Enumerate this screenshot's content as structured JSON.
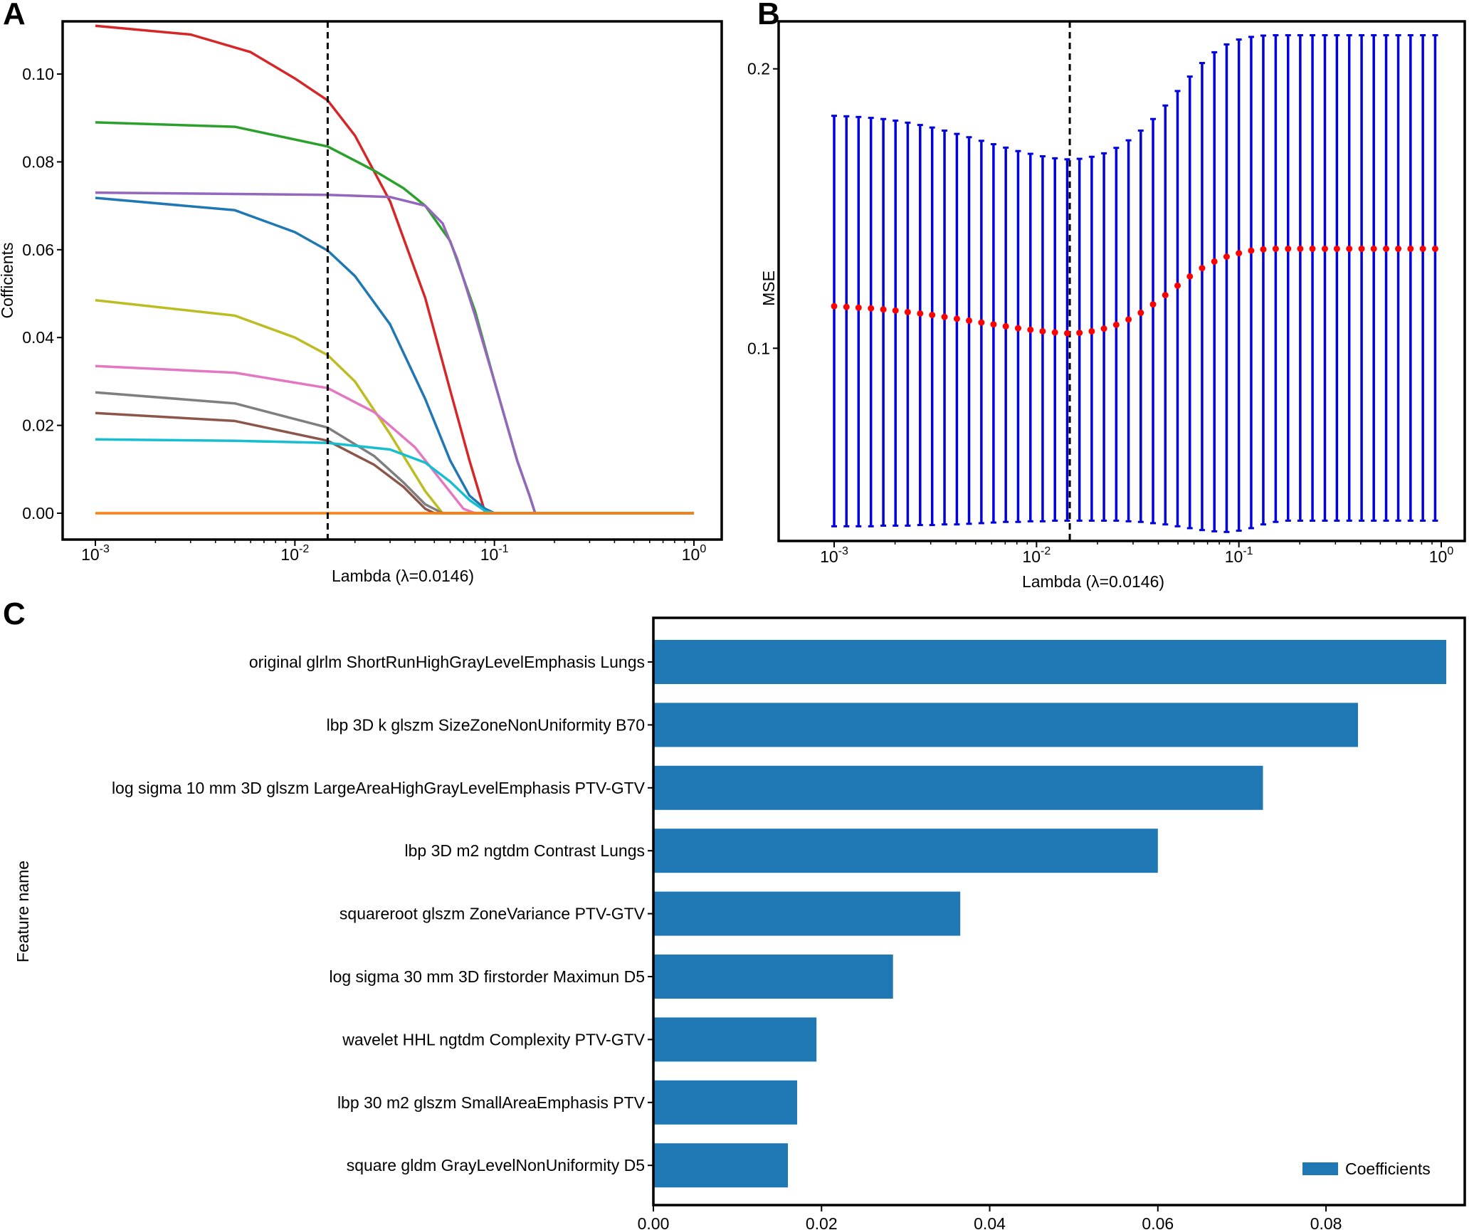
{
  "chart_data": [
    {
      "panel": "A",
      "type": "line",
      "xscale": "log",
      "xlabel": "Lambda (λ=0.0146)",
      "ylabel": "Cofficients",
      "xlim": [
        0.001,
        1
      ],
      "ylim": [
        -0.006,
        0.112
      ],
      "xticks": [
        {
          "exp": "-3"
        },
        {
          "exp": "-2"
        },
        {
          "exp": "-1"
        },
        {
          "exp": "0"
        }
      ],
      "yticks": [
        "0.00",
        "0.02",
        "0.04",
        "0.06",
        "0.08",
        "0.10"
      ],
      "cutoff_lambda": 0.0146,
      "series": [
        {
          "color": "#d62728",
          "x": [
            0.001,
            0.003,
            0.006,
            0.01,
            0.0146,
            0.02,
            0.03,
            0.045,
            0.06,
            0.075,
            0.09,
            1
          ],
          "y": [
            0.111,
            0.109,
            0.105,
            0.099,
            0.094,
            0.086,
            0.071,
            0.049,
            0.028,
            0.012,
            0.0,
            0.0
          ]
        },
        {
          "color": "#2ca02c",
          "x": [
            0.001,
            0.005,
            0.0146,
            0.025,
            0.035,
            0.045,
            0.06,
            0.08,
            0.1,
            0.13,
            0.15,
            0.16,
            1
          ],
          "y": [
            0.089,
            0.088,
            0.0835,
            0.078,
            0.074,
            0.07,
            0.062,
            0.046,
            0.03,
            0.012,
            0.004,
            0.0,
            0.0
          ]
        },
        {
          "color": "#9467bd",
          "x": [
            0.001,
            0.0146,
            0.03,
            0.045,
            0.055,
            0.065,
            0.08,
            0.1,
            0.13,
            0.15,
            0.16,
            1
          ],
          "y": [
            0.073,
            0.0725,
            0.072,
            0.07,
            0.066,
            0.058,
            0.045,
            0.03,
            0.012,
            0.004,
            0.0,
            0.0
          ]
        },
        {
          "color": "#1f77b4",
          "x": [
            0.001,
            0.005,
            0.01,
            0.0146,
            0.02,
            0.03,
            0.045,
            0.06,
            0.075,
            0.09,
            0.1,
            1
          ],
          "y": [
            0.0718,
            0.069,
            0.064,
            0.0598,
            0.054,
            0.043,
            0.026,
            0.012,
            0.004,
            0.001,
            0.0,
            0.0
          ]
        },
        {
          "color": "#bcbd22",
          "x": [
            0.001,
            0.005,
            0.01,
            0.0146,
            0.02,
            0.03,
            0.045,
            0.055,
            1
          ],
          "y": [
            0.0485,
            0.045,
            0.04,
            0.036,
            0.03,
            0.018,
            0.005,
            0.0,
            0.0
          ]
        },
        {
          "color": "#e377c2",
          "x": [
            0.001,
            0.005,
            0.0146,
            0.025,
            0.04,
            0.055,
            0.07,
            0.08,
            1
          ],
          "y": [
            0.0335,
            0.032,
            0.0285,
            0.023,
            0.015,
            0.007,
            0.001,
            0.0,
            0.0
          ]
        },
        {
          "color": "#7f7f7f",
          "x": [
            0.001,
            0.005,
            0.0146,
            0.025,
            0.035,
            0.045,
            0.055,
            0.06,
            1
          ],
          "y": [
            0.0275,
            0.025,
            0.0195,
            0.013,
            0.007,
            0.002,
            0.0,
            0.0,
            0.0
          ]
        },
        {
          "color": "#8c564b",
          "x": [
            0.001,
            0.005,
            0.0146,
            0.025,
            0.035,
            0.045,
            0.05,
            1
          ],
          "y": [
            0.0228,
            0.021,
            0.0165,
            0.011,
            0.006,
            0.001,
            0.0,
            0.0
          ]
        },
        {
          "color": "#17becf",
          "x": [
            0.001,
            0.005,
            0.0146,
            0.03,
            0.045,
            0.06,
            0.075,
            0.09,
            0.1,
            1
          ],
          "y": [
            0.0168,
            0.0165,
            0.016,
            0.0145,
            0.0115,
            0.0072,
            0.003,
            0.0005,
            0.0,
            0.0
          ]
        },
        {
          "color": "#ff7f0e",
          "x": [
            0.001,
            1
          ],
          "y": [
            0.0,
            0.0
          ]
        }
      ]
    },
    {
      "panel": "B",
      "type": "scatter",
      "xscale": "log",
      "yscale": "log",
      "xlabel": "Lambda (λ=0.0146)",
      "ylabel": "MSE",
      "xlim": [
        0.001,
        1
      ],
      "ylim": [
        0.062,
        0.225
      ],
      "xticks": [
        {
          "exp": "-3"
        },
        {
          "exp": "-2"
        },
        {
          "exp": "-1"
        },
        {
          "exp": "0"
        }
      ],
      "yticks": [
        "0.1",
        "0.2"
      ],
      "cutoff_lambda": 0.0146,
      "error_bar_color": "#0000dd",
      "point_color": "#ff0000",
      "lambdas": [
        0.001,
        0.00115,
        0.00132,
        0.00152,
        0.00175,
        0.00201,
        0.00231,
        0.00266,
        0.00305,
        0.00351,
        0.00404,
        0.00464,
        0.00534,
        0.00613,
        0.00705,
        0.00811,
        0.00933,
        0.01072,
        0.01233,
        0.01418,
        0.0163,
        0.01874,
        0.02154,
        0.02477,
        0.02848,
        0.03275,
        0.03765,
        0.04329,
        0.04977,
        0.05722,
        0.06579,
        0.07565,
        0.08697,
        0.1,
        0.115,
        0.132,
        0.152,
        0.175,
        0.201,
        0.231,
        0.266,
        0.305,
        0.351,
        0.404,
        0.464,
        0.534,
        0.613,
        0.705,
        0.811,
        0.933
      ],
      "mse": [
        0.111,
        0.1108,
        0.1106,
        0.1104,
        0.1101,
        0.1098,
        0.1094,
        0.109,
        0.1086,
        0.1081,
        0.1076,
        0.1071,
        0.1066,
        0.1061,
        0.1056,
        0.1051,
        0.1047,
        0.1043,
        0.104,
        0.1038,
        0.1039,
        0.1043,
        0.105,
        0.106,
        0.1074,
        0.1092,
        0.1115,
        0.1141,
        0.1168,
        0.1195,
        0.122,
        0.124,
        0.1255,
        0.1266,
        0.1274,
        0.1278,
        0.128,
        0.128,
        0.128,
        0.128,
        0.128,
        0.128,
        0.128,
        0.128,
        0.128,
        0.128,
        0.128,
        0.128,
        0.128,
        0.128
      ],
      "upper": [
        0.178,
        0.1778,
        0.1775,
        0.1771,
        0.1766,
        0.1759,
        0.175,
        0.174,
        0.1729,
        0.1716,
        0.1702,
        0.1688,
        0.1673,
        0.1659,
        0.1645,
        0.1631,
        0.162,
        0.161,
        0.1602,
        0.1598,
        0.16,
        0.1608,
        0.1622,
        0.1644,
        0.1675,
        0.1716,
        0.1766,
        0.1826,
        0.1893,
        0.1962,
        0.2029,
        0.2084,
        0.2125,
        0.2151,
        0.2165,
        0.2172,
        0.2174,
        0.2174,
        0.2174,
        0.2174,
        0.2174,
        0.2174,
        0.2174,
        0.2174,
        0.2174,
        0.2174,
        0.2174,
        0.2174,
        0.2174,
        0.2174
      ],
      "lower": [
        0.0643,
        0.0643,
        0.0643,
        0.0643,
        0.0644,
        0.0644,
        0.0644,
        0.0645,
        0.0645,
        0.0646,
        0.0646,
        0.0647,
        0.0648,
        0.0649,
        0.065,
        0.065,
        0.0651,
        0.0651,
        0.0652,
        0.0652,
        0.0652,
        0.0652,
        0.0652,
        0.0652,
        0.0651,
        0.065,
        0.0648,
        0.0646,
        0.0643,
        0.064,
        0.0637,
        0.0635,
        0.0634,
        0.0636,
        0.064,
        0.0646,
        0.065,
        0.0652,
        0.0652,
        0.0652,
        0.0652,
        0.0652,
        0.0652,
        0.0652,
        0.0652,
        0.0652,
        0.0652,
        0.0652,
        0.0652,
        0.0652
      ]
    },
    {
      "panel": "C",
      "type": "bar",
      "orientation": "horizontal",
      "ylabel": "Feature name",
      "xlim": [
        0,
        0.0965
      ],
      "xticks": [
        "0.00",
        "0.02",
        "0.04",
        "0.06",
        "0.08"
      ],
      "legend": "Coefficients",
      "legend_position": "bottom-right",
      "bar_color": "#1f77b4",
      "categories": [
        "original glrlm ShortRunHighGrayLevelEmphasis Lungs",
        "lbp 3D k glszm SizeZoneNonUniformity B70",
        "log sigma 10 mm 3D glszm LargeAreaHighGrayLevelEmphasis PTV-GTV",
        "lbp 3D m2 ngtdm Contrast Lungs",
        "squareroot glszm ZoneVariance PTV-GTV",
        "log sigma 30 mm 3D firstorder Maximun D5",
        "wavelet HHL ngtdm Complexity PTV-GTV",
        "lbp 30 m2 glszm SmallAreaEmphasis PTV",
        "square gldm GrayLevelNonUniformity D5"
      ],
      "values": [
        0.0943,
        0.0838,
        0.0725,
        0.06,
        0.0365,
        0.0285,
        0.0194,
        0.0171,
        0.016
      ]
    }
  ]
}
